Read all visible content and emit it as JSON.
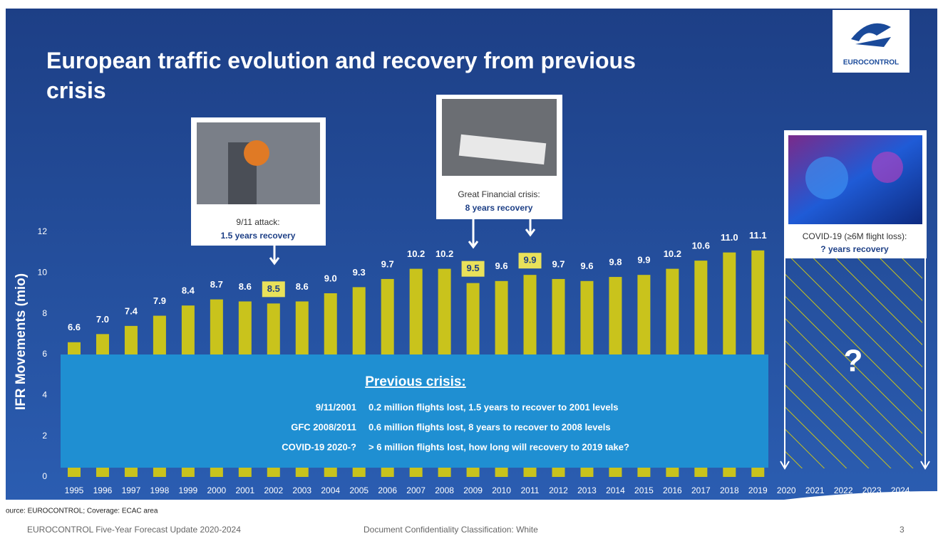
{
  "slide": {
    "logo": "EUROCONTROL",
    "source": "ource: EUROCONTROL; Coverage: ECAC area",
    "footer_left": "EUROCONTROL Five-Year Forecast Update 2020-2024",
    "footer_center": "Document Confidentiality Classification: White",
    "page": "3"
  },
  "chart_data": {
    "type": "bar",
    "title": "European traffic evolution and recovery from previous crisis",
    "y_label": "IFR Movements (mio)",
    "categories": [
      "1995",
      "1996",
      "1997",
      "1998",
      "1999",
      "2000",
      "2001",
      "2002",
      "2003",
      "2004",
      "2005",
      "2006",
      "2007",
      "2008",
      "2009",
      "2010",
      "2011",
      "2012",
      "2013",
      "2014",
      "2015",
      "2016",
      "2017",
      "2018",
      "2019",
      "2020",
      "2021",
      "2022",
      "2023",
      "2024"
    ],
    "values": [
      6.6,
      7.0,
      7.4,
      7.9,
      8.4,
      8.7,
      8.6,
      8.5,
      8.6,
      9.0,
      9.3,
      9.7,
      10.2,
      10.2,
      9.5,
      9.6,
      9.9,
      9.7,
      9.6,
      9.8,
      9.9,
      10.2,
      10.6,
      11.0,
      11.1,
      null,
      null,
      null,
      null,
      null
    ],
    "value_labels": [
      "6.6",
      "7.0",
      "7.4",
      "7.9",
      "8.4",
      "8.7",
      "8.6",
      "8.5",
      "8.6",
      "9.0",
      "9.3",
      "9.7",
      "10.2",
      "10.2",
      "9.5",
      "9.6",
      "9.9",
      "9.7",
      "9.6",
      "9.8",
      "9.9",
      "10.2",
      "10.6",
      "11.0",
      "11.1",
      null,
      null,
      null,
      null,
      null
    ],
    "color": "#c9c31c",
    "ylim": [
      0,
      12
    ],
    "yticks": [
      0,
      2,
      4,
      6,
      8,
      10,
      12
    ],
    "grid": false,
    "annotations": {
      "attack_title": "9/11 attack:",
      "attack_recovery": "1.5 years recovery",
      "gfc_title": "Great Financial crisis:",
      "gfc_recovery": "8 years recovery",
      "covid_title": "COVID-19 (≥6M flight loss):",
      "covid_recovery": "? years recovery",
      "covid_mark": "?"
    },
    "crisis": {
      "heading": "Previous crisis:",
      "rows": [
        [
          "9/11/2001",
          "0.2 million flights lost, 1.5 years to recover to 2001 levels"
        ],
        [
          "GFC 2008/2011",
          "0.6 million flights lost, 8 years to recover to 2008 levels"
        ],
        [
          "COVID-19 2020-?",
          "> 6 million flights lost, how long will recovery to 2019 take?"
        ]
      ]
    }
  }
}
